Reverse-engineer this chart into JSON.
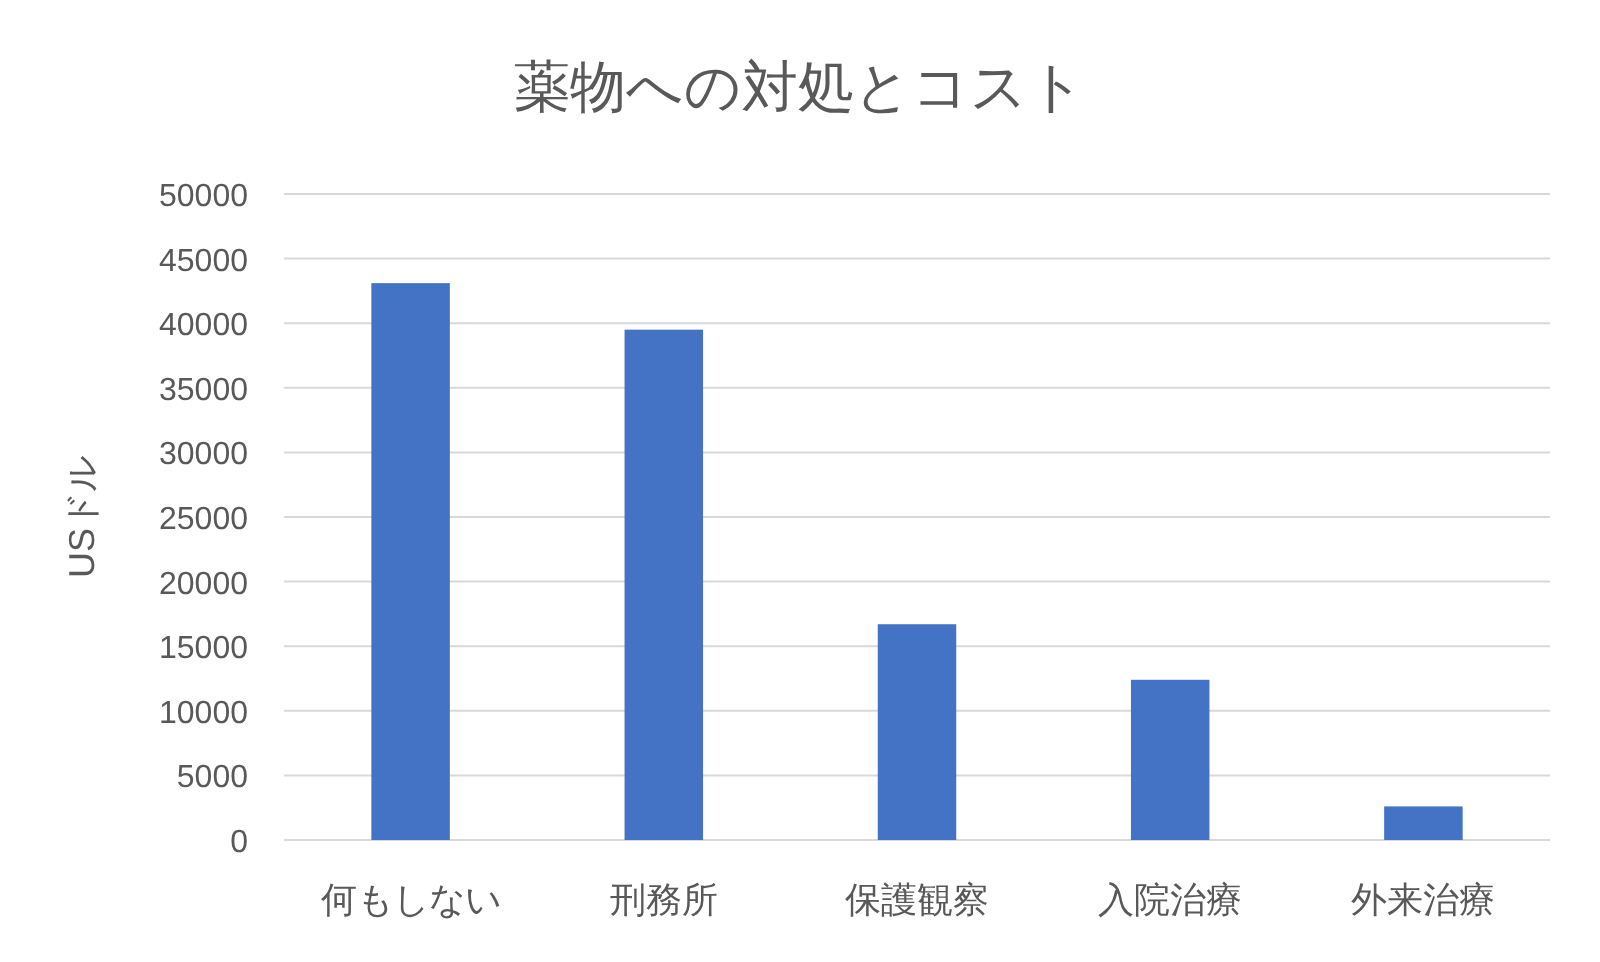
{
  "chart_data": {
    "type": "bar",
    "title": "薬物への対処とコスト",
    "ylabel": "USドル",
    "categories": [
      "何もしない",
      "刑務所",
      "保護観察",
      "入院治療",
      "外来治療"
    ],
    "values": [
      43100,
      39500,
      16700,
      12400,
      2600
    ],
    "color": "#4472c4",
    "ylim": [
      0,
      50000
    ],
    "yticks": [
      0,
      5000,
      10000,
      15000,
      20000,
      25000,
      30000,
      35000,
      40000,
      45000,
      50000
    ],
    "grid": "y"
  }
}
